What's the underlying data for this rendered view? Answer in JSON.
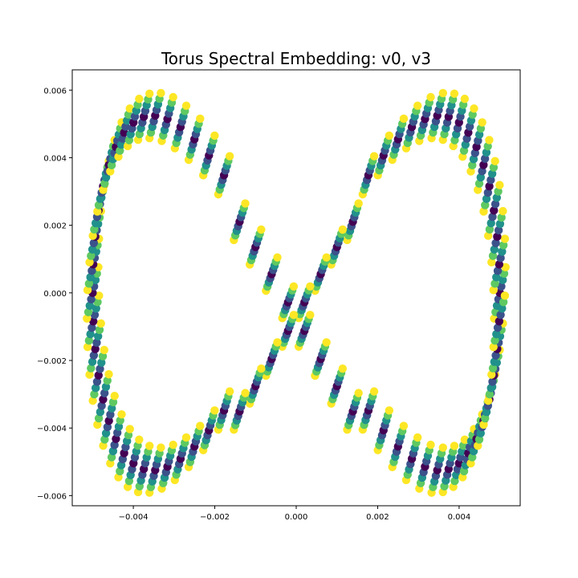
{
  "chart_data": {
    "type": "scatter",
    "title": "Torus Spectral Embedding: v0, v3",
    "xlabel": "",
    "ylabel": "",
    "xlim": [
      -0.0055,
      0.0055
    ],
    "ylim": [
      -0.0063,
      0.0066
    ],
    "xticks": [
      -0.004,
      -0.002,
      0.0,
      0.002,
      0.004
    ],
    "xtick_labels": [
      "−0.004",
      "−0.002",
      "0.000",
      "0.002",
      "0.004"
    ],
    "yticks": [
      -0.006,
      -0.004,
      -0.002,
      0.0,
      0.002,
      0.004,
      0.006
    ],
    "ytick_labels": [
      "−0.006",
      "−0.004",
      "−0.002",
      "0.000",
      "0.002",
      "0.004",
      "0.006"
    ],
    "grid": false,
    "colormap": "viridis",
    "colormap_stops": [
      "#440154",
      "#3b528b",
      "#21918c",
      "#5ec962",
      "#fde725"
    ],
    "description_of_points": "Many short overlapping strokes arranged along a figure-eight (lemniscate) curve; stroke ends colored yellow-green, interiors dark purple.",
    "curve_samples": [
      {
        "x": -0.005,
        "y": 0.0
      },
      {
        "x": -0.0047,
        "y": 0.0031
      },
      {
        "x": -0.004,
        "y": 0.005
      },
      {
        "x": -0.003,
        "y": 0.0052
      },
      {
        "x": -0.002,
        "y": 0.0037
      },
      {
        "x": -0.001,
        "y": 0.0016
      },
      {
        "x": 0.0,
        "y": -0.0011
      },
      {
        "x": 0.001,
        "y": 0.001
      },
      {
        "x": 0.002,
        "y": 0.0035
      },
      {
        "x": 0.003,
        "y": 0.0052
      },
      {
        "x": 0.004,
        "y": 0.0052
      },
      {
        "x": 0.0048,
        "y": 0.003
      },
      {
        "x": 0.005,
        "y": 0.0
      },
      {
        "x": 0.0047,
        "y": -0.003
      },
      {
        "x": 0.004,
        "y": -0.0048
      },
      {
        "x": 0.003,
        "y": -0.0053
      },
      {
        "x": 0.002,
        "y": -0.004
      },
      {
        "x": 0.001,
        "y": -0.002
      },
      {
        "x": -0.001,
        "y": -0.0024
      },
      {
        "x": -0.002,
        "y": -0.004
      },
      {
        "x": -0.003,
        "y": -0.005
      },
      {
        "x": -0.004,
        "y": -0.0042
      },
      {
        "x": -0.0047,
        "y": -0.0024
      }
    ]
  }
}
